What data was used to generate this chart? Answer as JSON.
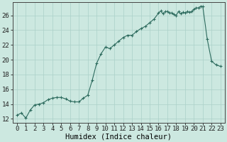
{
  "x_values": [
    0,
    0.5,
    1,
    1.5,
    2,
    2.5,
    3,
    3.5,
    4,
    4.5,
    5,
    5.5,
    6,
    6.5,
    7,
    7.5,
    8,
    8.5,
    9,
    9.5,
    10,
    10.5,
    11,
    11.5,
    12,
    12.5,
    13,
    13.5,
    14,
    14.5,
    15,
    15.5,
    16,
    16.25,
    16.5,
    16.75,
    17,
    17.25,
    17.5,
    17.75,
    18,
    18.25,
    18.5,
    18.75,
    19,
    19.25,
    19.5,
    19.75,
    20,
    20.25,
    20.5,
    20.75,
    21,
    21.5,
    22,
    22.5,
    23
  ],
  "y_values": [
    12.5,
    12.8,
    12.1,
    13.2,
    13.9,
    14.0,
    14.2,
    14.6,
    14.8,
    14.9,
    14.9,
    14.7,
    14.4,
    14.3,
    14.3,
    14.8,
    15.2,
    17.2,
    19.5,
    20.8,
    21.7,
    21.5,
    22.0,
    22.5,
    23.0,
    23.3,
    23.3,
    23.8,
    24.2,
    24.5,
    25.0,
    25.5,
    26.3,
    26.6,
    26.2,
    26.5,
    26.5,
    26.3,
    26.3,
    26.1,
    26.0,
    26.5,
    26.2,
    26.4,
    26.3,
    26.5,
    26.4,
    26.5,
    26.8,
    27.0,
    27.0,
    27.2,
    27.2,
    22.8,
    19.8,
    19.3,
    19.1
  ],
  "line_color": "#2d6b5e",
  "marker_color": "#2d6b5e",
  "bg_color": "#cce8e0",
  "grid_color": "#aad0c8",
  "xlabel": "Humidex (Indice chaleur)",
  "ylabel_ticks": [
    12,
    14,
    16,
    18,
    20,
    22,
    24,
    26
  ],
  "xlim": [
    -0.5,
    23.5
  ],
  "ylim": [
    11.5,
    27.8
  ],
  "xlabel_fontsize": 7.5,
  "tick_fontsize": 6.5
}
